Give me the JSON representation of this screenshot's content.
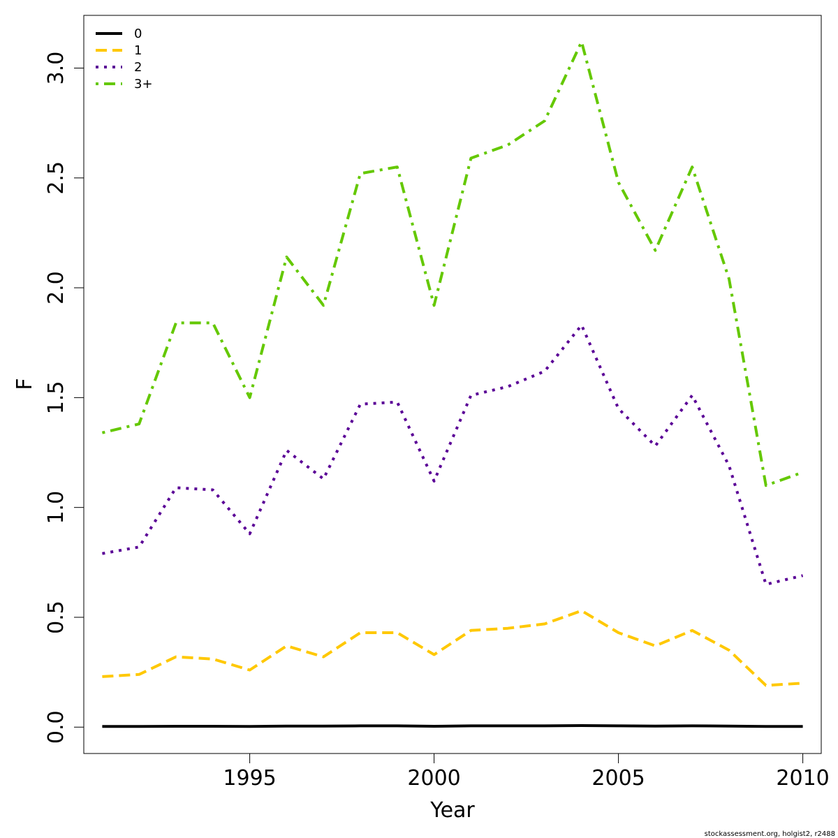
{
  "chart_data": {
    "type": "line",
    "xlabel": "Year",
    "ylabel": "F",
    "xlim": [
      1990.5,
      2010.5
    ],
    "ylim": [
      -0.12,
      3.24
    ],
    "x_ticks": [
      1995,
      2000,
      2005,
      2010
    ],
    "y_ticks": [
      0.0,
      0.5,
      1.0,
      1.5,
      2.0,
      2.5,
      3.0
    ],
    "x_tick_labels": [
      "1995",
      "2000",
      "2005",
      "2010"
    ],
    "y_tick_labels": [
      "0.0",
      "0.5",
      "1.0",
      "1.5",
      "2.0",
      "2.5",
      "3.0"
    ],
    "legend_position": "top-left",
    "x": [
      1991,
      1992,
      1993,
      1994,
      1995,
      1996,
      1997,
      1998,
      1999,
      2000,
      2001,
      2002,
      2003,
      2004,
      2005,
      2006,
      2007,
      2008,
      2009,
      2010
    ],
    "series": [
      {
        "name": "0",
        "color": "#000000",
        "dash": "solid",
        "values": [
          0.003,
          0.003,
          0.004,
          0.004,
          0.003,
          0.005,
          0.005,
          0.006,
          0.006,
          0.004,
          0.006,
          0.006,
          0.006,
          0.007,
          0.006,
          0.005,
          0.006,
          0.005,
          0.003,
          0.003
        ]
      },
      {
        "name": "1",
        "color": "#FFC800",
        "dash": "dashed",
        "values": [
          0.23,
          0.24,
          0.32,
          0.31,
          0.26,
          0.37,
          0.32,
          0.43,
          0.43,
          0.33,
          0.44,
          0.45,
          0.47,
          0.53,
          0.43,
          0.37,
          0.44,
          0.35,
          0.19,
          0.2
        ]
      },
      {
        "name": "2",
        "color": "#5A0096",
        "dash": "dotted",
        "values": [
          0.79,
          0.82,
          1.09,
          1.08,
          0.88,
          1.26,
          1.13,
          1.47,
          1.48,
          1.12,
          1.51,
          1.55,
          1.62,
          1.83,
          1.45,
          1.28,
          1.51,
          1.19,
          0.65,
          0.69
        ]
      },
      {
        "name": "3+",
        "color": "#64C800",
        "dash": "dotdash",
        "values": [
          1.34,
          1.38,
          1.84,
          1.84,
          1.5,
          2.14,
          1.92,
          2.52,
          2.55,
          1.92,
          2.59,
          2.65,
          2.76,
          3.12,
          2.48,
          2.17,
          2.55,
          2.04,
          1.1,
          1.16
        ]
      }
    ]
  },
  "credit": "stockassessment.org, holgist2, r2488"
}
